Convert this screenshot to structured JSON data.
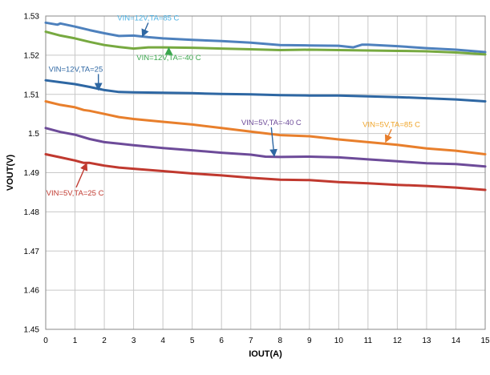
{
  "chart_data": {
    "type": "line",
    "title": "",
    "xlabel": "IOUT(A)",
    "ylabel": "VOUT(V)",
    "xlim": [
      0,
      15
    ],
    "ylim": [
      1.45,
      1.53
    ],
    "grid": true,
    "legend": "none",
    "x_ticks": [
      "0",
      "1",
      "2",
      "3",
      "4",
      "5",
      "6",
      "7",
      "8",
      "9",
      "10",
      "11",
      "12",
      "13",
      "14",
      "15"
    ],
    "y_ticks": [
      "1.45",
      "1.46",
      "1.47",
      "1.48",
      "1.49",
      "1.5",
      "1.51",
      "1.52",
      "1.53"
    ],
    "series": [
      {
        "name": "VIN=12V,TA=85 C",
        "color": "#4e81bd",
        "x": [
          0,
          0.4,
          0.5,
          1,
          1.5,
          2,
          2.5,
          3,
          3.5,
          4,
          5,
          6,
          7,
          8,
          9,
          10,
          10.5,
          10.8,
          11,
          12,
          13,
          14,
          15
        ],
        "y": [
          1.5283,
          1.5278,
          1.5281,
          1.5273,
          1.5264,
          1.5256,
          1.5249,
          1.525,
          1.5246,
          1.5243,
          1.5239,
          1.5236,
          1.5232,
          1.5226,
          1.5225,
          1.5224,
          1.522,
          1.5227,
          1.5227,
          1.5223,
          1.5218,
          1.5214,
          1.5208
        ]
      },
      {
        "name": "VIN=12V,TA=-40 C",
        "color": "#77a940",
        "x": [
          0,
          0.5,
          1,
          1.5,
          2,
          2.5,
          3,
          3.5,
          4,
          5,
          6,
          7,
          8,
          9,
          10,
          11,
          12,
          13,
          14,
          15
        ],
        "y": [
          1.526,
          1.525,
          1.5243,
          1.5234,
          1.5226,
          1.5221,
          1.5217,
          1.522,
          1.522,
          1.5219,
          1.5217,
          1.5215,
          1.5213,
          1.5214,
          1.5213,
          1.5212,
          1.5211,
          1.521,
          1.5207,
          1.5202
        ]
      },
      {
        "name": "VIN=12V,TA=25",
        "color": "#2e67a3",
        "x": [
          0,
          0.5,
          1,
          1.5,
          2,
          2.5,
          3,
          4,
          5,
          6,
          7,
          8,
          9,
          10,
          11,
          12,
          13,
          14,
          15
        ],
        "y": [
          1.5136,
          1.5131,
          1.5126,
          1.5119,
          1.5111,
          1.5106,
          1.5105,
          1.5104,
          1.5103,
          1.5101,
          1.51,
          1.5098,
          1.5097,
          1.5097,
          1.5095,
          1.5093,
          1.509,
          1.5087,
          1.5082
        ]
      },
      {
        "name": "VIN=5V,TA=85 C",
        "color": "#e87f2c",
        "x": [
          0,
          0.5,
          1,
          1.3,
          1.5,
          2,
          2.5,
          3,
          4,
          5,
          6,
          7,
          8,
          9,
          10,
          11,
          12,
          13,
          14,
          15
        ],
        "y": [
          1.5082,
          1.5073,
          1.5067,
          1.506,
          1.5058,
          1.505,
          1.5042,
          1.5037,
          1.503,
          1.5023,
          1.5014,
          1.5005,
          1.4996,
          1.4993,
          1.4985,
          1.4978,
          1.4971,
          1.4962,
          1.4956,
          1.4947
        ]
      },
      {
        "name": "VIN=5V,TA=-40 C",
        "color": "#6d4b99",
        "x": [
          0,
          0.5,
          1,
          1.5,
          2,
          2.5,
          3,
          4,
          5,
          6,
          7,
          7.5,
          8,
          9,
          10,
          11,
          12,
          13,
          14,
          15
        ],
        "y": [
          1.5014,
          1.5004,
          1.4997,
          1.4986,
          1.4978,
          1.4974,
          1.497,
          1.4963,
          1.4957,
          1.4951,
          1.4946,
          1.4941,
          1.494,
          1.4941,
          1.4939,
          1.4934,
          1.4929,
          1.4924,
          1.4922,
          1.4916
        ]
      },
      {
        "name": "VIN=5V,TA=25 C",
        "color": "#c0392f",
        "x": [
          0,
          0.5,
          1,
          1.3,
          1.5,
          2,
          2.5,
          3,
          4,
          5,
          6,
          7,
          8,
          9,
          10,
          11,
          12,
          13,
          14,
          15
        ],
        "y": [
          1.4947,
          1.4939,
          1.4931,
          1.4925,
          1.4925,
          1.4918,
          1.4913,
          1.491,
          1.4904,
          1.4898,
          1.4893,
          1.4887,
          1.4882,
          1.4881,
          1.4876,
          1.4873,
          1.4869,
          1.4866,
          1.4862,
          1.4856
        ]
      }
    ],
    "annotations": [
      {
        "text": "VIN=12V,TA=85 C",
        "color": "#4ab0e3",
        "arrow_color": "#2e67a3",
        "label_x": 3.5,
        "label_y": 1.5289,
        "tip_x": 3.3,
        "tip_y": 1.5248,
        "anchor": "middle"
      },
      {
        "text": "VIN=12V,TA=-40 C",
        "color": "#3aa64c",
        "arrow_color": "#3aa64c",
        "label_x": 4.2,
        "label_y": 1.5187,
        "tip_x": 4.2,
        "tip_y": 1.5219,
        "anchor": "middle"
      },
      {
        "text": "VIN=12V,TA=25",
        "color": "#2e67a3",
        "arrow_color": "#2e67a3",
        "label_x": 0.1,
        "label_y": 1.5158,
        "tip_x": 1.8,
        "tip_y": 1.5111,
        "anchor": "start"
      },
      {
        "text": "VIN=5V,TA=-40 C",
        "color": "#6d4b99",
        "arrow_color": "#2e67a3",
        "label_x": 7.7,
        "label_y": 1.5022,
        "tip_x": 7.8,
        "tip_y": 1.4942,
        "anchor": "middle"
      },
      {
        "text": "VIN=5V,TA=85 C",
        "color": "#f0a52a",
        "arrow_color": "#e87f2c",
        "label_x": 11.8,
        "label_y": 1.5017,
        "tip_x": 11.6,
        "tip_y": 1.4978,
        "anchor": "middle"
      },
      {
        "text": "VIN=5V,TA=25 C",
        "color": "#c0392f",
        "arrow_color": "#c0392f",
        "label_x": 1.0,
        "label_y": 1.4842,
        "tip_x": 1.4,
        "tip_y": 1.4924,
        "anchor": "middle"
      }
    ]
  }
}
